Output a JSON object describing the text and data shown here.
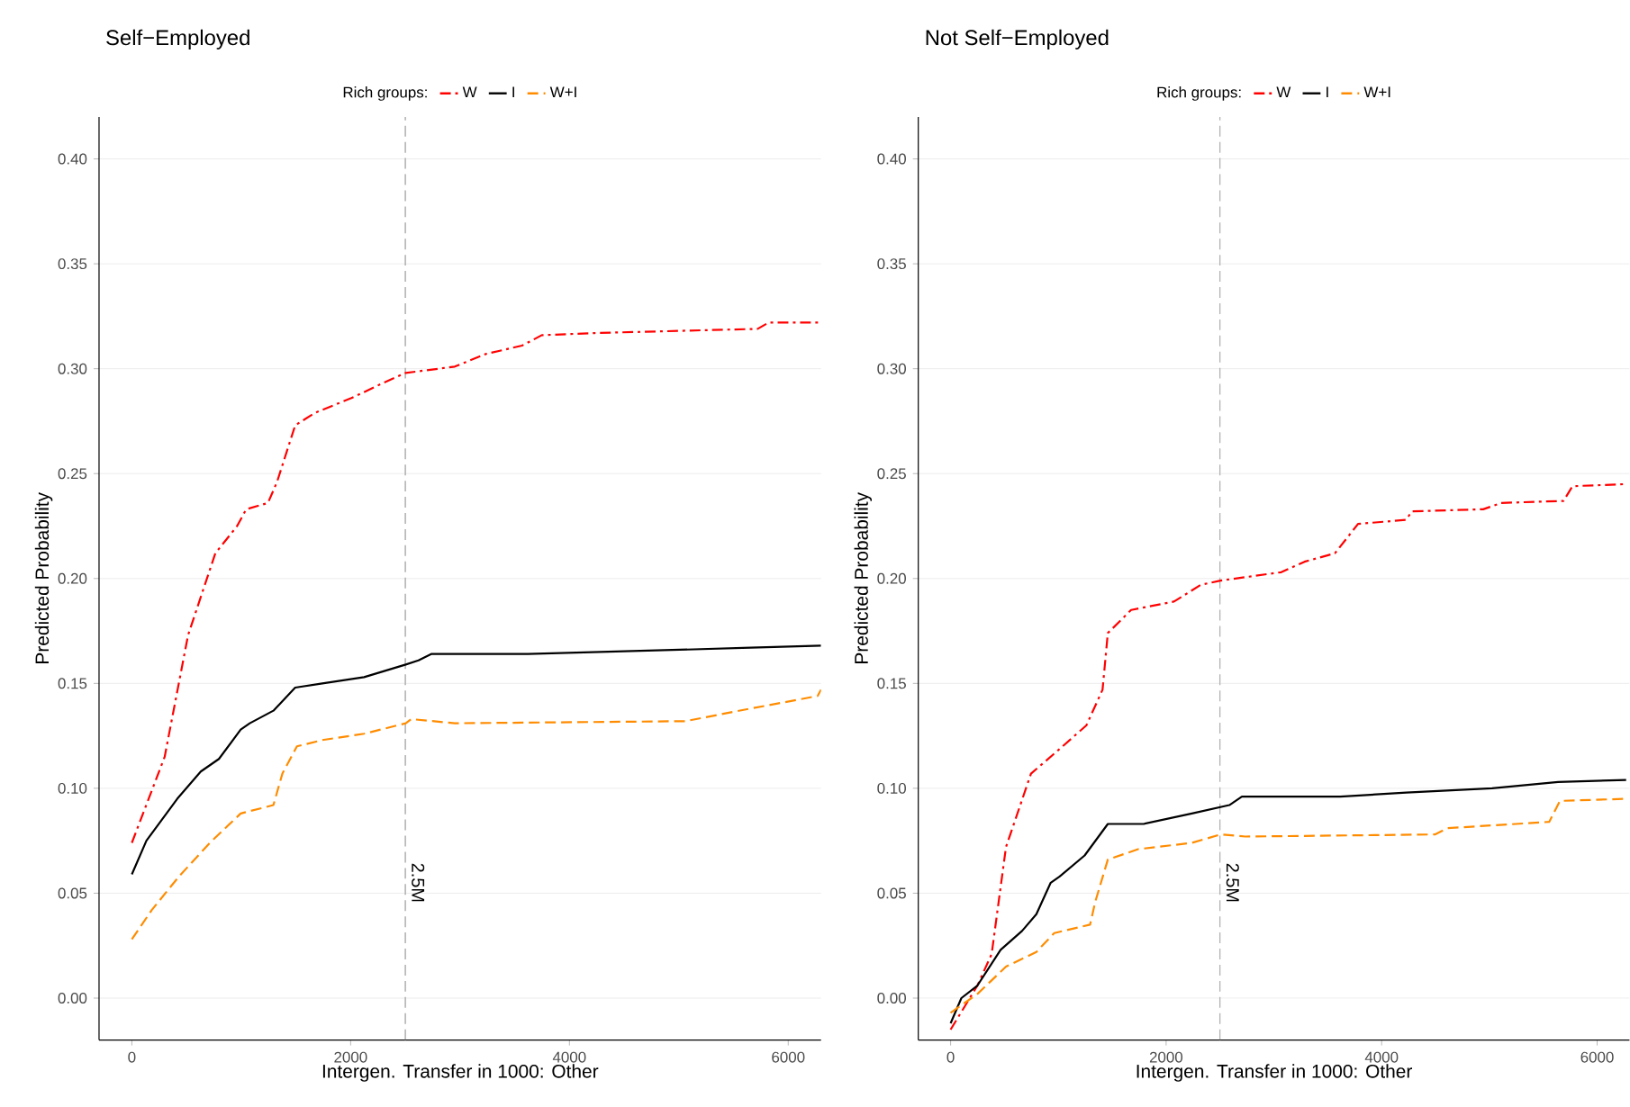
{
  "chart_data": [
    {
      "type": "line",
      "title": "Self−Employed",
      "legend_title": "Rich groups:",
      "legend": "top",
      "grid": "y",
      "xlabel": "Intergen. Transfer in 1000: Other",
      "ylabel": "Predicted Probability",
      "xlim": [
        -300,
        6300
      ],
      "ylim": [
        -0.02,
        0.42
      ],
      "xticks": [
        0,
        2000,
        4000,
        6000
      ],
      "yticks": [
        {
          "value": 0,
          "label": "0.00"
        },
        {
          "value": 0.05,
          "label": "0.05"
        },
        {
          "value": 0.1,
          "label": "0.10"
        },
        {
          "value": 0.15,
          "label": "0.15"
        },
        {
          "value": 0.2,
          "label": "0.20"
        },
        {
          "value": 0.25,
          "label": "0.25"
        },
        {
          "value": 0.3,
          "label": "0.30"
        },
        {
          "value": 0.35,
          "label": "0.35"
        },
        {
          "value": 0.4,
          "label": "0.40"
        }
      ],
      "ref_lines": [
        {
          "axis": "x",
          "value": 2500,
          "label": "2.5M",
          "color": "#b3b3b3",
          "line_style": "dashed"
        }
      ],
      "series": [
        {
          "name": "W",
          "color": "#ff0000",
          "line_style": "dashdot",
          "x": [
            0,
            300,
            514,
            763,
            962,
            1045,
            1244,
            1327,
            1493,
            1675,
            2007,
            2289,
            2504,
            2952,
            3234,
            3566,
            3748,
            4229,
            5721,
            5821,
            6300
          ],
          "values": [
            0.074,
            0.115,
            0.173,
            0.212,
            0.225,
            0.233,
            0.236,
            0.246,
            0.273,
            0.279,
            0.286,
            0.293,
            0.298,
            0.301,
            0.307,
            0.311,
            0.316,
            0.317,
            0.319,
            0.322,
            0.322
          ]
        },
        {
          "name": "I",
          "color": "#000000",
          "line_style": "solid",
          "x": [
            0,
            133,
            415,
            630,
            796,
            995,
            1078,
            1294,
            1493,
            1741,
            2123,
            2504,
            2620,
            2736,
            3620,
            5655,
            6300
          ],
          "values": [
            0.059,
            0.075,
            0.095,
            0.108,
            0.114,
            0.128,
            0.131,
            0.137,
            0.148,
            0.15,
            0.153,
            0.159,
            0.161,
            0.164,
            0.164,
            0.167,
            0.168
          ]
        },
        {
          "name": "W+I",
          "color": "#ff8c00",
          "line_style": "dashed",
          "x": [
            0,
            182,
            431,
            713,
            995,
            1294,
            1376,
            1509,
            1741,
            2123,
            2504,
            2554,
            2952,
            5058,
            5655,
            6269,
            6300
          ],
          "values": [
            0.028,
            0.042,
            0.058,
            0.074,
            0.088,
            0.092,
            0.107,
            0.12,
            0.123,
            0.126,
            0.131,
            0.133,
            0.131,
            0.132,
            0.138,
            0.144,
            0.147
          ]
        }
      ]
    },
    {
      "type": "line",
      "title": "Not Self−Employed",
      "legend_title": "Rich groups:",
      "legend": "top",
      "grid": "y",
      "xlabel": "Intergen. Transfer in 1000: Other",
      "ylabel": "Predicted Probability",
      "xlim": [
        -300,
        6300
      ],
      "ylim": [
        -0.02,
        0.42
      ],
      "xticks": [
        0,
        2000,
        4000,
        6000
      ],
      "yticks": [
        {
          "value": 0,
          "label": "0.00"
        },
        {
          "value": 0.05,
          "label": "0.05"
        },
        {
          "value": 0.1,
          "label": "0.10"
        },
        {
          "value": 0.15,
          "label": "0.15"
        },
        {
          "value": 0.2,
          "label": "0.20"
        },
        {
          "value": 0.25,
          "label": "0.25"
        },
        {
          "value": 0.3,
          "label": "0.30"
        },
        {
          "value": 0.35,
          "label": "0.35"
        },
        {
          "value": 0.4,
          "label": "0.40"
        }
      ],
      "ref_lines": [
        {
          "axis": "x",
          "value": 2500,
          "label": "2.5M",
          "color": "#b3b3b3",
          "line_style": "dashed"
        }
      ],
      "series": [
        {
          "name": "W",
          "color": "#ff0000",
          "line_style": "dashdot",
          "x": [
            0,
            249,
            381,
            514,
            746,
            995,
            1260,
            1410,
            1459,
            1675,
            2073,
            2322,
            2504,
            3068,
            3284,
            3566,
            3781,
            4229,
            4279,
            4942,
            5108,
            5688,
            5771,
            6269
          ],
          "values": [
            -0.015,
            0.006,
            0.021,
            0.072,
            0.107,
            0.118,
            0.13,
            0.147,
            0.174,
            0.185,
            0.189,
            0.197,
            0.199,
            0.203,
            0.208,
            0.212,
            0.226,
            0.228,
            0.232,
            0.233,
            0.236,
            0.237,
            0.244,
            0.245
          ]
        },
        {
          "name": "I",
          "color": "#000000",
          "line_style": "solid",
          "x": [
            0,
            100,
            249,
            464,
            663,
            796,
            929,
            1012,
            1244,
            1459,
            1791,
            2239,
            2587,
            2703,
            3615,
            4229,
            5025,
            5638,
            6269
          ],
          "values": [
            -0.012,
            0.0,
            0.006,
            0.023,
            0.032,
            0.04,
            0.055,
            0.058,
            0.068,
            0.083,
            0.083,
            0.088,
            0.092,
            0.096,
            0.096,
            0.098,
            0.1,
            0.103,
            0.104
          ]
        },
        {
          "name": "W+I",
          "color": "#ff8c00",
          "line_style": "dashed",
          "x": [
            0,
            249,
            514,
            796,
            962,
            1294,
            1343,
            1459,
            1741,
            2239,
            2504,
            2736,
            4494,
            4610,
            5555,
            5655,
            6269
          ],
          "values": [
            -0.007,
            0.002,
            0.015,
            0.022,
            0.031,
            0.035,
            0.046,
            0.066,
            0.071,
            0.074,
            0.078,
            0.077,
            0.078,
            0.081,
            0.084,
            0.094,
            0.095
          ]
        }
      ]
    }
  ]
}
